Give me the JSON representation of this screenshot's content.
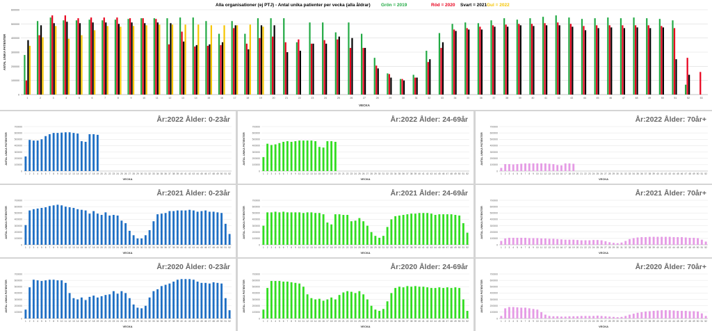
{
  "main": {
    "title": "Alla organisationer (ej PTJ)   -   Antal unika patienter per vecka (alla åldrar)",
    "legend": [
      {
        "label": "Grön = 2019",
        "color": "#22aa44"
      },
      {
        "label": "Röd = 2020",
        "color": "#e8001c"
      },
      {
        "label": "Svart = 2021",
        "color": "#000000"
      },
      {
        "label": "Gul = 2022",
        "color": "#f5c400"
      }
    ],
    "ylabel": "ANTAL UNIKA PATIENTER",
    "xlabel": "VECKA",
    "ytick_labels": [
      "0",
      "100000",
      "200000",
      "300000",
      "400000",
      "500000",
      "600000"
    ],
    "chart_data": {
      "type": "bar",
      "ylim": [
        0,
        600000
      ],
      "categories": [
        "1",
        "2",
        "3",
        "4",
        "5",
        "6",
        "7",
        "8",
        "9",
        "10",
        "11",
        "12",
        "13",
        "14",
        "15",
        "16",
        "17",
        "18",
        "19",
        "20",
        "21",
        "22",
        "23",
        "24",
        "25",
        "26",
        "27",
        "28",
        "29",
        "30",
        "31",
        "32",
        "33",
        "34",
        "35",
        "36",
        "37",
        "38",
        "39",
        "40",
        "41",
        "42",
        "43",
        "44",
        "45",
        "46",
        "47",
        "48",
        "49",
        "50",
        "51",
        "52",
        "53"
      ],
      "series": [
        {
          "color": "#22aa44",
          "values": [
            280000,
            520000,
            545000,
            525000,
            525000,
            530000,
            525000,
            530000,
            535000,
            540000,
            540000,
            540000,
            545000,
            545000,
            520000,
            430000,
            520000,
            430000,
            540000,
            540000,
            540000,
            370000,
            510000,
            510000,
            440000,
            510000,
            430000,
            260000,
            150000,
            110000,
            140000,
            310000,
            435000,
            500000,
            510000,
            505000,
            525000,
            540000,
            530000,
            540000,
            550000,
            560000,
            545000,
            535000,
            540000,
            545000,
            540000,
            545000,
            540000,
            535000,
            525000,
            70000,
            0
          ]
        },
        {
          "color": "#e8001c",
          "values": [
            100000,
            420000,
            560000,
            560000,
            540000,
            545000,
            545000,
            545000,
            540000,
            540000,
            535000,
            355000,
            445000,
            340000,
            345000,
            350000,
            470000,
            360000,
            400000,
            410000,
            370000,
            390000,
            360000,
            385000,
            390000,
            330000,
            330000,
            205000,
            145000,
            110000,
            120000,
            230000,
            330000,
            460000,
            470000,
            480000,
            490000,
            495000,
            500000,
            500000,
            505000,
            510000,
            500000,
            485000,
            490000,
            490000,
            490000,
            490000,
            490000,
            485000,
            470000,
            260000,
            160000
          ]
        },
        {
          "color": "#000000",
          "values": [
            385000,
            490000,
            505000,
            515000,
            505000,
            510000,
            510000,
            500000,
            510000,
            505000,
            510000,
            505000,
            375000,
            350000,
            355000,
            370000,
            490000,
            320000,
            490000,
            490000,
            300000,
            310000,
            360000,
            360000,
            410000,
            400000,
            330000,
            185000,
            120000,
            100000,
            120000,
            250000,
            370000,
            450000,
            460000,
            460000,
            480000,
            480000,
            490000,
            485000,
            490000,
            490000,
            480000,
            455000,
            470000,
            475000,
            470000,
            475000,
            470000,
            475000,
            250000,
            140000,
            0
          ]
        },
        {
          "color": "#f5c400",
          "values": [
            345000,
            405000,
            485000,
            395000,
            420000,
            455000,
            485000,
            480000,
            485000,
            490000,
            495000,
            495000,
            495000,
            495000,
            490000,
            490000,
            490000,
            495000,
            480000,
            0,
            0,
            0,
            0,
            0,
            0,
            0,
            0,
            0,
            0,
            0,
            0,
            0,
            0,
            0,
            0,
            0,
            0,
            0,
            0,
            0,
            0,
            0,
            0,
            0,
            0,
            0,
            0,
            0,
            0,
            0,
            0,
            0,
            0
          ]
        }
      ]
    }
  },
  "panels": [
    {
      "title": "År:2022   Ålder: 0-23år",
      "ylabel": "ANTAL UNIKA PATIENTER",
      "xlabel": "VECKA",
      "ytick_labels": [
        "0",
        "100000",
        "200000",
        "300000",
        "400000",
        "500000",
        "600000",
        "700000"
      ],
      "chart_data": {
        "type": "bar",
        "ylim": [
          0,
          700000
        ],
        "color": "#1f6fc4",
        "values": [
          230000,
          490000,
          480000,
          480000,
          500000,
          550000,
          580000,
          600000,
          600000,
          605000,
          610000,
          610000,
          600000,
          590000,
          470000,
          460000,
          580000,
          580000,
          570000,
          0,
          0,
          0,
          0,
          0,
          0,
          0,
          0,
          0,
          0,
          0,
          0,
          0,
          0,
          0,
          0,
          0,
          0,
          0,
          0,
          0,
          0,
          0,
          0,
          0,
          0,
          0,
          0,
          0,
          0,
          0,
          0,
          0
        ]
      }
    },
    {
      "title": "År:2022   Ålder: 24-69år",
      "ylabel": "ANTAL UNIKA PATIENTER",
      "xlabel": "VECKA",
      "ytick_labels": [
        "0",
        "100000",
        "200000",
        "300000",
        "400000",
        "500000",
        "600000",
        "700000"
      ],
      "chart_data": {
        "type": "bar",
        "ylim": [
          0,
          700000
        ],
        "color": "#33dd22",
        "values": [
          220000,
          430000,
          410000,
          420000,
          440000,
          460000,
          470000,
          460000,
          470000,
          480000,
          480000,
          480000,
          480000,
          470000,
          380000,
          370000,
          470000,
          470000,
          460000,
          0,
          0,
          0,
          0,
          0,
          0,
          0,
          0,
          0,
          0,
          0,
          0,
          0,
          0,
          0,
          0,
          0,
          0,
          0,
          0,
          0,
          0,
          0,
          0,
          0,
          0,
          0,
          0,
          0,
          0,
          0,
          0,
          0
        ]
      }
    },
    {
      "title": "År:2022   Ålder: 70år+",
      "ylabel": "ANTAL UNIKA PATIENTER",
      "xlabel": "VECKA",
      "ytick_labels": [
        "0",
        "100000",
        "200000",
        "300000",
        "400000",
        "500000",
        "600000",
        "700000"
      ],
      "chart_data": {
        "type": "bar",
        "ylim": [
          0,
          700000
        ],
        "color": "#e59be5",
        "values": [
          50000,
          110000,
          110000,
          105000,
          110000,
          115000,
          120000,
          120000,
          120000,
          120000,
          120000,
          120000,
          115000,
          110000,
          95000,
          90000,
          120000,
          120000,
          115000,
          0,
          0,
          0,
          0,
          0,
          0,
          0,
          0,
          0,
          0,
          0,
          0,
          0,
          0,
          0,
          0,
          0,
          0,
          0,
          0,
          0,
          0,
          0,
          0,
          0,
          0,
          0,
          0,
          0,
          0,
          0,
          0,
          0
        ]
      }
    },
    {
      "title": "År:2021   Ålder: 0-23år",
      "ylabel": "ANTAL UNIKA PATIENTER",
      "xlabel": "VECKA",
      "ytick_labels": [
        "0",
        "100000",
        "200000",
        "300000",
        "400000",
        "500000",
        "600000",
        "700000"
      ],
      "chart_data": {
        "type": "bar",
        "ylim": [
          0,
          700000
        ],
        "color": "#1f6fc4",
        "values": [
          310000,
          540000,
          560000,
          570000,
          580000,
          590000,
          610000,
          620000,
          630000,
          620000,
          600000,
          590000,
          580000,
          560000,
          550000,
          540000,
          490000,
          530000,
          490000,
          470000,
          510000,
          460000,
          470000,
          460000,
          380000,
          340000,
          220000,
          150000,
          100000,
          100000,
          150000,
          230000,
          370000,
          480000,
          490000,
          500000,
          530000,
          530000,
          540000,
          540000,
          540000,
          550000,
          540000,
          520000,
          530000,
          540000,
          520000,
          520000,
          510000,
          500000,
          330000,
          170000
        ]
      }
    },
    {
      "title": "År:2021   Ålder: 24-69år",
      "ylabel": "ANTAL UNIKA PATIENTER",
      "xlabel": "VECKA",
      "ytick_labels": [
        "0",
        "100000",
        "200000",
        "300000",
        "400000",
        "500000",
        "600000",
        "700000"
      ],
      "chart_data": {
        "type": "bar",
        "ylim": [
          0,
          700000
        ],
        "color": "#33dd22",
        "values": [
          300000,
          510000,
          510000,
          520000,
          510000,
          520000,
          510000,
          510000,
          510000,
          510000,
          500000,
          510000,
          510000,
          500000,
          500000,
          480000,
          350000,
          320000,
          480000,
          480000,
          470000,
          470000,
          370000,
          380000,
          420000,
          370000,
          300000,
          200000,
          140000,
          110000,
          140000,
          280000,
          400000,
          450000,
          460000,
          470000,
          480000,
          490000,
          490000,
          500000,
          500000,
          500000,
          490000,
          470000,
          480000,
          480000,
          480000,
          480000,
          470000,
          460000,
          340000,
          190000
        ]
      }
    },
    {
      "title": "År:2021   Ålder: 70år+",
      "ylabel": "ANTAL UNIKA PATIENTER",
      "xlabel": "VECKA",
      "ytick_labels": [
        "0",
        "100000",
        "200000",
        "300000",
        "400000",
        "500000",
        "600000",
        "700000"
      ],
      "chart_data": {
        "type": "bar",
        "ylim": [
          0,
          700000
        ],
        "color": "#e59be5",
        "values": [
          60000,
          100000,
          110000,
          110000,
          110000,
          110000,
          110000,
          105000,
          105000,
          105000,
          100000,
          100000,
          95000,
          95000,
          90000,
          85000,
          80000,
          80000,
          80000,
          75000,
          70000,
          70000,
          70000,
          75000,
          75000,
          70000,
          55000,
          40000,
          30000,
          25000,
          35000,
          60000,
          90000,
          105000,
          115000,
          120000,
          120000,
          125000,
          125000,
          125000,
          125000,
          125000,
          125000,
          120000,
          120000,
          120000,
          115000,
          110000,
          110000,
          105000,
          80000,
          50000
        ]
      }
    },
    {
      "title": "År:2020   Ålder: 0-23år",
      "ylabel": "ANTAL UNIKA PATIENTER",
      "xlabel": "VECKA",
      "ytick_labels": [
        "0",
        "100000",
        "200000",
        "300000",
        "400000",
        "500000",
        "600000",
        "700000"
      ],
      "chart_data": {
        "type": "bar",
        "ylim": [
          0,
          700000
        ],
        "color": "#1f6fc4",
        "values": [
          140000,
          490000,
          610000,
          600000,
          590000,
          600000,
          610000,
          610000,
          600000,
          600000,
          560000,
          400000,
          320000,
          300000,
          330000,
          290000,
          340000,
          360000,
          330000,
          350000,
          370000,
          380000,
          430000,
          390000,
          430000,
          400000,
          320000,
          220000,
          170000,
          160000,
          200000,
          330000,
          430000,
          460000,
          510000,
          530000,
          550000,
          580000,
          610000,
          620000,
          620000,
          620000,
          610000,
          580000,
          560000,
          560000,
          550000,
          570000,
          560000,
          550000,
          320000,
          130000
        ]
      }
    },
    {
      "title": "År:2020   Ålder: 24-69år",
      "ylabel": "ANTAL UNIKA PATIENTER",
      "xlabel": "VECKA",
      "ytick_labels": [
        "0",
        "100000",
        "200000",
        "300000",
        "400000",
        "500000",
        "600000",
        "700000"
      ],
      "chart_data": {
        "type": "bar",
        "ylim": [
          0,
          700000
        ],
        "color": "#33dd22",
        "values": [
          140000,
          480000,
          590000,
          590000,
          590000,
          580000,
          580000,
          570000,
          560000,
          550000,
          500000,
          380000,
          320000,
          300000,
          310000,
          280000,
          300000,
          330000,
          300000,
          370000,
          410000,
          430000,
          420000,
          400000,
          430000,
          380000,
          300000,
          200000,
          140000,
          120000,
          150000,
          270000,
          400000,
          480000,
          500000,
          490000,
          510000,
          500000,
          510000,
          500000,
          500000,
          490000,
          480000,
          480000,
          490000,
          480000,
          490000,
          480000,
          490000,
          480000,
          300000,
          120000
        ]
      }
    },
    {
      "title": "År:2020   Ålder: 70år+",
      "ylabel": "ANTAL UNIKA PATIENTER",
      "xlabel": "VECKA",
      "ytick_labels": [
        "0",
        "100000",
        "200000",
        "300000",
        "400000",
        "500000",
        "600000",
        "700000"
      ],
      "chart_data": {
        "type": "bar",
        "ylim": [
          0,
          700000
        ],
        "color": "#e59be5",
        "values": [
          40000,
          160000,
          180000,
          180000,
          175000,
          170000,
          170000,
          160000,
          150000,
          140000,
          100000,
          60000,
          40000,
          35000,
          35000,
          30000,
          30000,
          35000,
          35000,
          35000,
          40000,
          40000,
          40000,
          40000,
          45000,
          40000,
          35000,
          30000,
          25000,
          20000,
          25000,
          40000,
          60000,
          75000,
          90000,
          100000,
          110000,
          115000,
          120000,
          125000,
          130000,
          130000,
          130000,
          125000,
          120000,
          120000,
          120000,
          115000,
          115000,
          110000,
          80000,
          40000
        ]
      }
    }
  ]
}
